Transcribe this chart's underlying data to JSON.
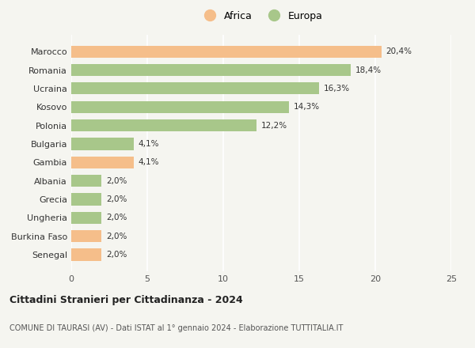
{
  "countries": [
    "Marocco",
    "Romania",
    "Ucraina",
    "Kosovo",
    "Polonia",
    "Bulgaria",
    "Gambia",
    "Albania",
    "Grecia",
    "Ungheria",
    "Burkina Faso",
    "Senegal"
  ],
  "values": [
    20.4,
    18.4,
    16.3,
    14.3,
    12.2,
    4.1,
    4.1,
    2.0,
    2.0,
    2.0,
    2.0,
    2.0
  ],
  "continents": [
    "Africa",
    "Europa",
    "Europa",
    "Europa",
    "Europa",
    "Europa",
    "Africa",
    "Europa",
    "Europa",
    "Europa",
    "Africa",
    "Africa"
  ],
  "labels": [
    "20,4%",
    "18,4%",
    "16,3%",
    "14,3%",
    "12,2%",
    "4,1%",
    "4,1%",
    "2,0%",
    "2,0%",
    "2,0%",
    "2,0%",
    "2,0%"
  ],
  "color_africa": "#F5BE8A",
  "color_europa": "#A8C78A",
  "xlim": [
    0,
    25
  ],
  "xticks": [
    0,
    5,
    10,
    15,
    20,
    25
  ],
  "title": "Cittadini Stranieri per Cittadinanza - 2024",
  "subtitle": "COMUNE DI TAURASI (AV) - Dati ISTAT al 1° gennaio 2024 - Elaborazione TUTTITALIA.IT",
  "legend_africa": "Africa",
  "legend_europa": "Europa",
  "background_color": "#f5f5f0",
  "bar_height": 0.65
}
